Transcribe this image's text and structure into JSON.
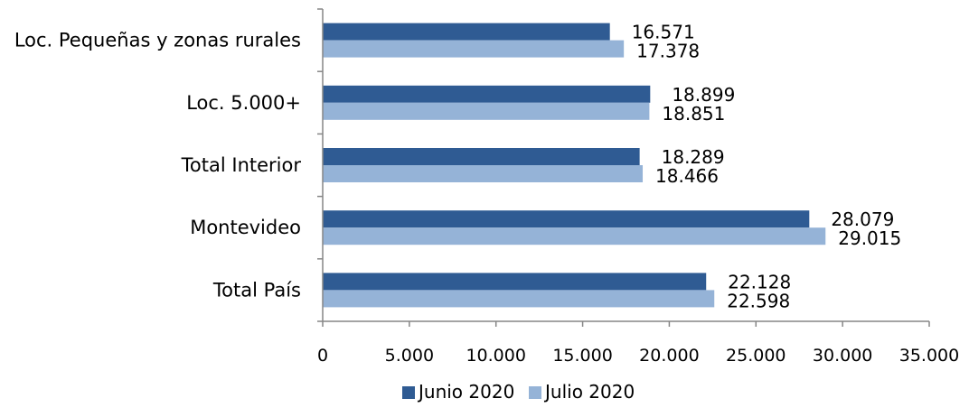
{
  "chart_data": {
    "type": "bar",
    "orientation": "horizontal",
    "categories": [
      "Loc. Pequeñas y zonas rurales",
      "Loc. 5.000+",
      "Total Interior",
      "Montevideo",
      "Total País"
    ],
    "series": [
      {
        "name": "Junio 2020",
        "color": "#2f5b93",
        "values": [
          16571,
          18899,
          18289,
          28079,
          22128
        ],
        "labels": [
          "16.571",
          "18.899",
          "18.289",
          "28.079",
          "22.128"
        ]
      },
      {
        "name": "Julio 2020",
        "color": "#95b3d7",
        "values": [
          17378,
          18851,
          18466,
          29015,
          22598
        ],
        "labels": [
          "17.378",
          "18.851",
          "18.466",
          "29.015",
          "22.598"
        ]
      }
    ],
    "xlim": [
      0,
      35000
    ],
    "xticks": [
      0,
      5000,
      10000,
      15000,
      20000,
      25000,
      30000,
      35000
    ],
    "xtick_labels": [
      "0",
      "5.000",
      "10.000",
      "15.000",
      "20.000",
      "25.000",
      "30.000",
      "35.000"
    ],
    "grid": false,
    "legend_position": "bottom",
    "title": "",
    "xlabel": "",
    "ylabel": ""
  }
}
